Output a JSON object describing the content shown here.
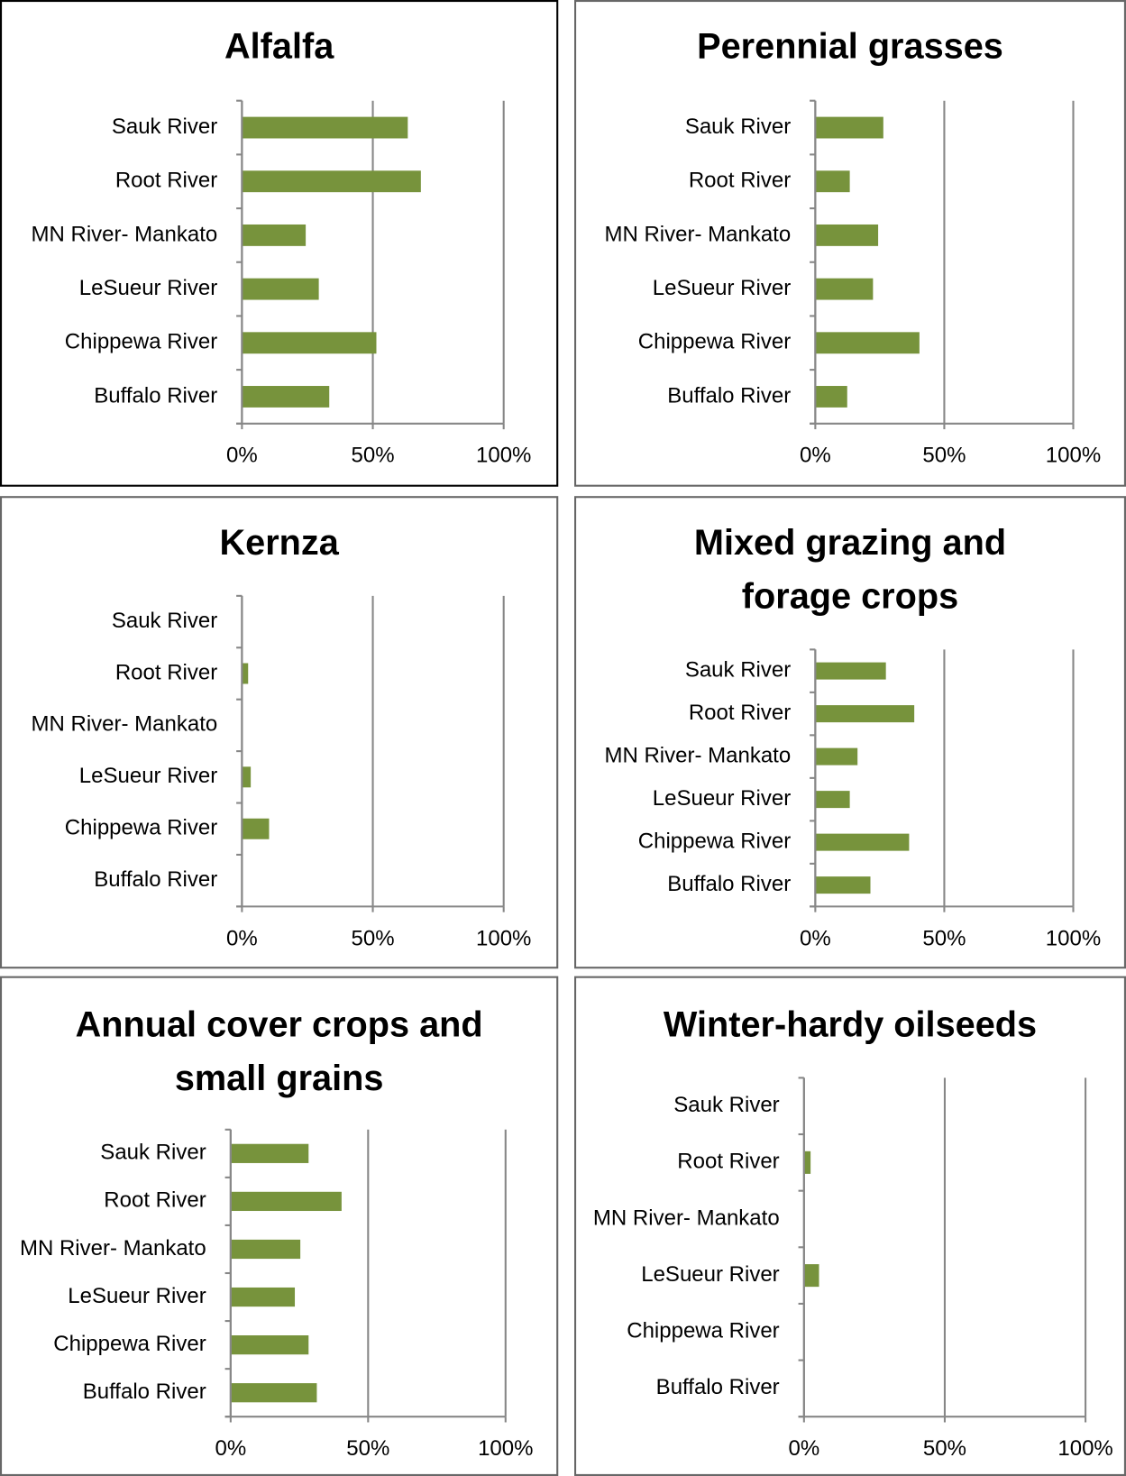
{
  "chart_data": [
    {
      "type": "bar",
      "title": "Alfalfa",
      "categories": [
        "Sauk River",
        "Root River",
        "MN River- Mankato",
        "LeSueur River",
        "Chippewa River",
        "Buffalo River"
      ],
      "values": [
        63,
        68,
        24,
        29,
        51,
        33
      ],
      "color": "#77933c",
      "xlim": [
        0,
        100
      ],
      "xticks": [
        {
          "value": 0,
          "label": "0%"
        },
        {
          "value": 50,
          "label": "50%"
        },
        {
          "value": 100,
          "label": "100%"
        }
      ],
      "grid": true
    },
    {
      "type": "bar",
      "title": "Perennial grasses",
      "categories": [
        "Sauk River",
        "Root River",
        "MN River- Mankato",
        "LeSueur River",
        "Chippewa River",
        "Buffalo River"
      ],
      "values": [
        26,
        13,
        24,
        22,
        40,
        12
      ],
      "color": "#77933c",
      "xlim": [
        0,
        100
      ],
      "xticks": [
        {
          "value": 0,
          "label": "0%"
        },
        {
          "value": 50,
          "label": "50%"
        },
        {
          "value": 100,
          "label": "100%"
        }
      ],
      "grid": true
    },
    {
      "type": "bar",
      "title": "Kernza",
      "categories": [
        "Sauk River",
        "Root River",
        "MN River- Mankato",
        "LeSueur River",
        "Chippewa River",
        "Buffalo River"
      ],
      "values": [
        0,
        2,
        0,
        3,
        10,
        0
      ],
      "color": "#77933c",
      "xlim": [
        0,
        100
      ],
      "xticks": [
        {
          "value": 0,
          "label": "0%"
        },
        {
          "value": 50,
          "label": "50%"
        },
        {
          "value": 100,
          "label": "100%"
        }
      ],
      "grid": true
    },
    {
      "type": "bar",
      "title": "Mixed grazing and forage crops",
      "categories": [
        "Sauk River",
        "Root River",
        "MN River- Mankato",
        "LeSueur River",
        "Chippewa River",
        "Buffalo River"
      ],
      "values": [
        27,
        38,
        16,
        13,
        36,
        21
      ],
      "color": "#77933c",
      "xlim": [
        0,
        100
      ],
      "xticks": [
        {
          "value": 0,
          "label": "0%"
        },
        {
          "value": 50,
          "label": "50%"
        },
        {
          "value": 100,
          "label": "100%"
        }
      ],
      "grid": true
    },
    {
      "type": "bar",
      "title": "Annual cover crops and small grains",
      "categories": [
        "Sauk River",
        "Root River",
        "MN River- Mankato",
        "LeSueur River",
        "Chippewa River",
        "Buffalo River"
      ],
      "values": [
        28,
        40,
        25,
        23,
        28,
        31
      ],
      "color": "#77933c",
      "xlim": [
        0,
        100
      ],
      "xticks": [
        {
          "value": 0,
          "label": "0%"
        },
        {
          "value": 50,
          "label": "50%"
        },
        {
          "value": 100,
          "label": "100%"
        }
      ],
      "grid": true
    },
    {
      "type": "bar",
      "title": "Winter-hardy oilseeds",
      "categories": [
        "Sauk River",
        "Root River",
        "MN River- Mankato",
        "LeSueur River",
        "Chippewa River",
        "Buffalo River"
      ],
      "values": [
        0,
        2,
        0,
        5,
        0,
        0
      ],
      "color": "#77933c",
      "xlim": [
        0,
        100
      ],
      "xticks": [
        {
          "value": 0,
          "label": "0%"
        },
        {
          "value": 50,
          "label": "50%"
        },
        {
          "value": 100,
          "label": "100%"
        }
      ],
      "grid": true
    }
  ]
}
